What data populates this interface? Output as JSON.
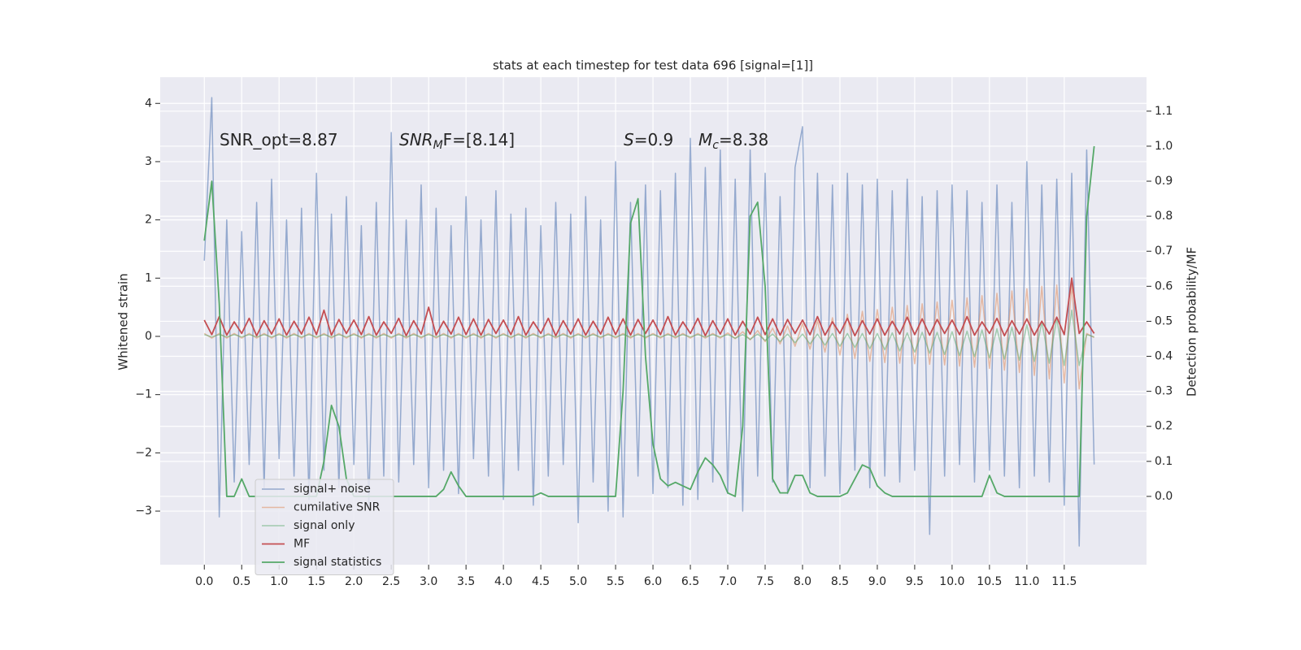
{
  "chart_data": {
    "type": "line",
    "title": "stats at each timestep for test data 696 [signal=[1]]",
    "xlabel": "",
    "ylabel": "Whitened strain",
    "y2label": "Detection probability/MF",
    "annotations": [
      {
        "rest": "SNR_opt=8.87"
      },
      {
        "base": "SNR",
        "sub": "M",
        "rest": "F=[8.14]"
      },
      {
        "base": "S",
        "rest": "=0.9"
      },
      {
        "base": "M",
        "sub": "c",
        "rest": "=8.38"
      }
    ],
    "grid": true,
    "legend_loc": "lower left",
    "xlim": [
      -0.59,
      12.6
    ],
    "ylim": [
      -3.92,
      4.45
    ],
    "y2lim": [
      -0.195,
      1.197
    ],
    "xticks": [
      {
        "value": 0,
        "label": "0.0"
      },
      0.5,
      {
        "value": 1,
        "label": "1.0"
      },
      1.5,
      {
        "value": 2,
        "label": "2.0"
      },
      2.5,
      {
        "value": 3,
        "label": "3.0"
      },
      3.5,
      {
        "value": 4,
        "label": "4.0"
      },
      4.5,
      {
        "value": 5,
        "label": "5.0"
      },
      5.5,
      {
        "value": 6,
        "label": "6.0"
      },
      6.5,
      {
        "value": 7,
        "label": "7.0"
      },
      7.5,
      {
        "value": 8,
        "label": "8.0"
      },
      8.5,
      {
        "value": 9,
        "label": "9.0"
      },
      9.5,
      {
        "value": 10,
        "label": "10.0"
      },
      10.5,
      {
        "value": 11,
        "label": "11.0"
      },
      11.5
    ],
    "yticks": [
      {
        "value": -3,
        "label": "−3"
      },
      {
        "value": -2,
        "label": "−2"
      },
      {
        "value": -1,
        "label": "−1"
      },
      0,
      1,
      2,
      3,
      4
    ],
    "y2ticks": [
      {
        "value": 0,
        "label": "0.0"
      },
      0.1,
      0.2,
      0.3,
      0.4,
      0.5,
      0.6,
      0.7,
      0.8,
      0.9,
      {
        "value": 1,
        "label": "1.0"
      },
      1.1
    ],
    "x": [
      0,
      0.1,
      0.2,
      0.3,
      0.4,
      0.5,
      0.6,
      0.7,
      0.8,
      0.9,
      1,
      1.1,
      1.2,
      1.3,
      1.4,
      1.5,
      1.6,
      1.7,
      1.8,
      1.9,
      2,
      2.1,
      2.2,
      2.3,
      2.4,
      2.5,
      2.6,
      2.7,
      2.8,
      2.9,
      3,
      3.1,
      3.2,
      3.3,
      3.4,
      3.5,
      3.6,
      3.7,
      3.8,
      3.9,
      4,
      4.1,
      4.2,
      4.3,
      4.4,
      4.5,
      4.6,
      4.7,
      4.8,
      4.9,
      5,
      5.1,
      5.2,
      5.3,
      5.4,
      5.5,
      5.6,
      5.7,
      5.8,
      5.9,
      6,
      6.1,
      6.2,
      6.3,
      6.4,
      6.5,
      6.6,
      6.7,
      6.8,
      6.9,
      7,
      7.1,
      7.2,
      7.3,
      7.4,
      7.5,
      7.6,
      7.7,
      7.8,
      7.9,
      8,
      8.1,
      8.2,
      8.3,
      8.4,
      8.5,
      8.6,
      8.7,
      8.8,
      8.9,
      9,
      9.1,
      9.2,
      9.3,
      9.4,
      9.5,
      9.6,
      9.7,
      9.8,
      9.9,
      10,
      10.1,
      10.2,
      10.3,
      10.4,
      10.5,
      10.6,
      10.7,
      10.8,
      10.9,
      11,
      11.1,
      11.2,
      11.3,
      11.4,
      11.5,
      11.6,
      11.7,
      11.8,
      11.9
    ],
    "series": [
      {
        "name": "signal+ noise",
        "color": "#4c72b0",
        "values": [
          1.3,
          4.1,
          -3.1,
          2.0,
          -2.5,
          1.8,
          -2.2,
          2.3,
          -2.6,
          2.7,
          -2.1,
          2.0,
          -2.4,
          2.2,
          -2.8,
          2.8,
          -2.3,
          2.1,
          -2.6,
          2.4,
          -2.2,
          1.9,
          -2.9,
          2.3,
          -2.4,
          3.5,
          -2.5,
          2.0,
          -2.2,
          2.6,
          -2.6,
          2.2,
          -2.3,
          1.9,
          -2.7,
          2.4,
          -2.1,
          2.0,
          -2.4,
          2.5,
          -2.8,
          2.1,
          -2.3,
          2.2,
          -2.9,
          1.9,
          -2.4,
          2.3,
          -2.2,
          2.1,
          -3.2,
          2.4,
          -2.5,
          2.0,
          -3.0,
          3.0,
          -3.1,
          2.3,
          -2.4,
          2.6,
          -2.7,
          2.5,
          -2.6,
          2.8,
          -2.9,
          3.4,
          -2.8,
          2.9,
          -2.5,
          3.2,
          -2.7,
          2.7,
          -3.0,
          3.2,
          -2.4,
          2.8,
          -2.5,
          2.4,
          -2.7,
          2.9,
          3.6,
          -2.6,
          2.8,
          -2.4,
          2.6,
          -2.7,
          2.8,
          -2.3,
          2.6,
          -2.6,
          2.7,
          -2.4,
          2.5,
          -2.5,
          2.7,
          -2.3,
          2.4,
          -3.4,
          2.5,
          -2.4,
          2.6,
          -2.2,
          2.5,
          -2.5,
          2.3,
          -2.3,
          2.6,
          -2.4,
          2.3,
          -2.6,
          3.0,
          -2.4,
          2.6,
          -2.5,
          2.7,
          -2.9,
          2.8,
          -3.6,
          3.2,
          -2.2
        ]
      },
      {
        "name": "cumilative SNR",
        "color": "#dd8452",
        "values": [
          0.05,
          -0.03,
          0.05,
          -0.03,
          0.05,
          -0.03,
          0.05,
          -0.03,
          0.05,
          -0.03,
          0.05,
          -0.03,
          0.05,
          -0.03,
          0.05,
          -0.03,
          0.05,
          -0.03,
          0.05,
          -0.03,
          0.05,
          -0.03,
          0.05,
          -0.03,
          0.05,
          -0.03,
          0.05,
          -0.03,
          0.05,
          -0.03,
          0.05,
          -0.03,
          0.05,
          -0.03,
          0.05,
          -0.03,
          0.05,
          -0.03,
          0.05,
          -0.03,
          0.05,
          -0.03,
          0.05,
          -0.03,
          0.05,
          -0.03,
          0.05,
          -0.03,
          0.05,
          -0.03,
          0.05,
          -0.03,
          0.05,
          -0.03,
          0.05,
          -0.03,
          0.05,
          -0.03,
          0.05,
          -0.03,
          0.05,
          -0.03,
          0.05,
          -0.03,
          0.05,
          -0.03,
          0.05,
          -0.03,
          0.05,
          -0.03,
          0.06,
          -0.04,
          0.08,
          -0.06,
          0.1,
          -0.09,
          0.14,
          -0.13,
          0.18,
          -0.17,
          0.22,
          -0.22,
          0.27,
          -0.27,
          0.32,
          -0.32,
          0.38,
          -0.38,
          0.43,
          -0.43,
          0.46,
          -0.45,
          0.5,
          -0.46,
          0.53,
          -0.47,
          0.56,
          -0.48,
          0.59,
          -0.49,
          0.62,
          -0.51,
          0.66,
          -0.53,
          0.7,
          -0.55,
          0.74,
          -0.58,
          0.78,
          -0.62,
          0.82,
          -0.67,
          0.86,
          -0.73,
          0.88,
          -0.8,
          0.9,
          -0.9,
          0.05,
          -0.02
        ]
      },
      {
        "name": "signal only",
        "color": "#55a868",
        "values": [
          0.03,
          -0.01,
          0.03,
          -0.01,
          0.03,
          -0.01,
          0.03,
          -0.01,
          0.03,
          -0.01,
          0.03,
          -0.01,
          0.03,
          -0.01,
          0.03,
          -0.01,
          0.03,
          -0.01,
          0.03,
          -0.01,
          0.03,
          -0.01,
          0.03,
          -0.01,
          0.03,
          -0.01,
          0.03,
          -0.01,
          0.03,
          -0.01,
          0.03,
          -0.01,
          0.03,
          -0.01,
          0.03,
          -0.01,
          0.03,
          -0.01,
          0.03,
          -0.01,
          0.03,
          -0.01,
          0.03,
          -0.01,
          0.03,
          -0.01,
          0.03,
          -0.01,
          0.03,
          -0.01,
          0.03,
          -0.01,
          0.03,
          -0.01,
          0.03,
          -0.01,
          0.03,
          -0.01,
          0.03,
          -0.01,
          0.03,
          -0.01,
          0.03,
          -0.01,
          0.03,
          -0.01,
          0.03,
          -0.01,
          0.03,
          -0.01,
          0.03,
          -0.03,
          0.03,
          -0.05,
          0.04,
          -0.07,
          0.04,
          -0.09,
          0.04,
          -0.11,
          0.04,
          -0.13,
          0.04,
          -0.15,
          0.05,
          -0.17,
          0.05,
          -0.19,
          0.05,
          -0.21,
          0.05,
          -0.23,
          0.06,
          -0.25,
          0.06,
          -0.27,
          0.07,
          -0.29,
          0.07,
          -0.31,
          0.08,
          -0.33,
          0.09,
          -0.35,
          0.11,
          -0.37,
          0.13,
          -0.39,
          0.16,
          -0.41,
          0.2,
          -0.43,
          0.25,
          -0.46,
          0.31,
          -0.5,
          0.45,
          -0.5,
          0.03,
          -0.01
        ]
      },
      {
        "name": "MF",
        "color": "#c44e52",
        "values": [
          0.28,
          0.03,
          0.34,
          0.02,
          0.25,
          0.05,
          0.31,
          0.01,
          0.27,
          0.04,
          0.3,
          0.02,
          0.26,
          0.04,
          0.33,
          0.03,
          0.45,
          0.02,
          0.29,
          0.05,
          0.28,
          0.03,
          0.34,
          0.02,
          0.25,
          0.05,
          0.31,
          0.01,
          0.27,
          0.04,
          0.5,
          0.02,
          0.26,
          0.04,
          0.33,
          0.03,
          0.3,
          0.02,
          0.29,
          0.05,
          0.28,
          0.03,
          0.34,
          0.02,
          0.25,
          0.05,
          0.31,
          0.01,
          0.27,
          0.04,
          0.3,
          0.02,
          0.26,
          0.04,
          0.33,
          0.03,
          0.3,
          0.02,
          0.29,
          0.05,
          0.28,
          0.03,
          0.34,
          0.02,
          0.25,
          0.05,
          0.31,
          0.01,
          0.27,
          0.04,
          0.3,
          0.02,
          0.26,
          0.04,
          0.33,
          0.03,
          0.3,
          0.02,
          0.29,
          0.05,
          0.28,
          0.03,
          0.34,
          0.02,
          0.25,
          0.05,
          0.31,
          0.01,
          0.27,
          0.04,
          0.3,
          0.02,
          0.26,
          0.04,
          0.33,
          0.03,
          0.3,
          0.02,
          0.29,
          0.05,
          0.28,
          0.03,
          0.34,
          0.02,
          0.25,
          0.05,
          0.31,
          0.01,
          0.27,
          0.04,
          0.3,
          0.02,
          0.26,
          0.04,
          0.33,
          0.03,
          1.0,
          0.05,
          0.25,
          0.05
        ]
      },
      {
        "name": "signal statistics",
        "color": "#55a868",
        "axis": "y2",
        "values": [
          0.73,
          0.9,
          0.55,
          0,
          0,
          0.05,
          0,
          0,
          0,
          0,
          0,
          0,
          0,
          0,
          0,
          0,
          0.1,
          0.26,
          0.2,
          0.05,
          0,
          0,
          0,
          0,
          0,
          0,
          0,
          0,
          0,
          0,
          0,
          0,
          0.02,
          0.07,
          0.03,
          0,
          0,
          0,
          0,
          0,
          0,
          0,
          0,
          0,
          0,
          0.01,
          0,
          0,
          0,
          0,
          0,
          0,
          0,
          0,
          0,
          0,
          0.3,
          0.78,
          0.85,
          0.4,
          0.15,
          0.05,
          0.03,
          0.04,
          0.03,
          0.02,
          0.07,
          0.11,
          0.09,
          0.06,
          0.01,
          0,
          0.2,
          0.8,
          0.84,
          0.6,
          0.05,
          0.01,
          0.01,
          0.06,
          0.06,
          0.01,
          0,
          0,
          0,
          0,
          0.01,
          0.05,
          0.09,
          0.08,
          0.03,
          0.01,
          0,
          0,
          0,
          0,
          0,
          0,
          0,
          0,
          0,
          0,
          0,
          0,
          0,
          0.06,
          0.01,
          0,
          0,
          0,
          0,
          0,
          0,
          0,
          0,
          0,
          0,
          0,
          0.8,
          1.0
        ]
      }
    ]
  }
}
